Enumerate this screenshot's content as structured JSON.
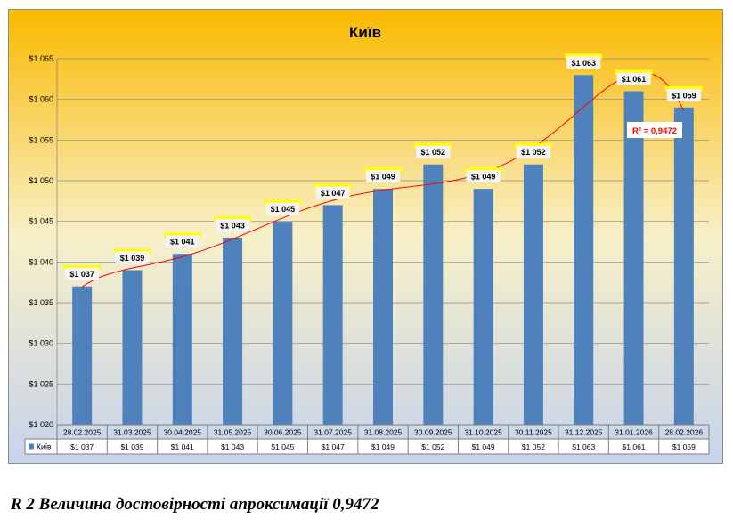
{
  "chart_data": {
    "type": "bar",
    "title": "Київ",
    "categories": [
      "28.02.2025",
      "31.03.2025",
      "30.04.2025",
      "31.05.2025",
      "30.06.2025",
      "31.07.2025",
      "31.08.2025",
      "30.09.2025",
      "31.10.2025",
      "30.11.2025",
      "31.12.2025",
      "31.01.2026",
      "28.02.2026"
    ],
    "series": [
      {
        "name": "Київ",
        "values": [
          1037,
          1039,
          1041,
          1043,
          1045,
          1047,
          1049,
          1052,
          1049,
          1052,
          1063,
          1061,
          1059
        ],
        "labels": [
          "$1 037",
          "$1 039",
          "$1 041",
          "$1 043",
          "$1 045",
          "$1 047",
          "$1 049",
          "$1 052",
          "$1 049",
          "$1 052",
          "$1 063",
          "$1 061",
          "$1 059"
        ],
        "color": "#4F81BD"
      }
    ],
    "ylim": [
      1020,
      1065
    ],
    "y_ticks": [
      1020,
      1025,
      1030,
      1035,
      1040,
      1045,
      1050,
      1055,
      1060,
      1065
    ],
    "y_tick_labels": [
      "$1 020",
      "$1 025",
      "$1 030",
      "$1 035",
      "$1 040",
      "$1 045",
      "$1 050",
      "$1 055",
      "$1 060",
      "$1 065"
    ],
    "grid": true,
    "data_table": true,
    "trendline": {
      "type": "polynomial",
      "color": "#FF0000",
      "r_squared_label": "R² = 0,9472"
    },
    "background": {
      "top": "#FBB900",
      "middle": "#F7F0C8",
      "bottom": "#C6D3EC"
    },
    "label_highlight_color": "#FFFF00"
  },
  "caption": "R 2 Величина достовірності апроксимації 0,9472"
}
